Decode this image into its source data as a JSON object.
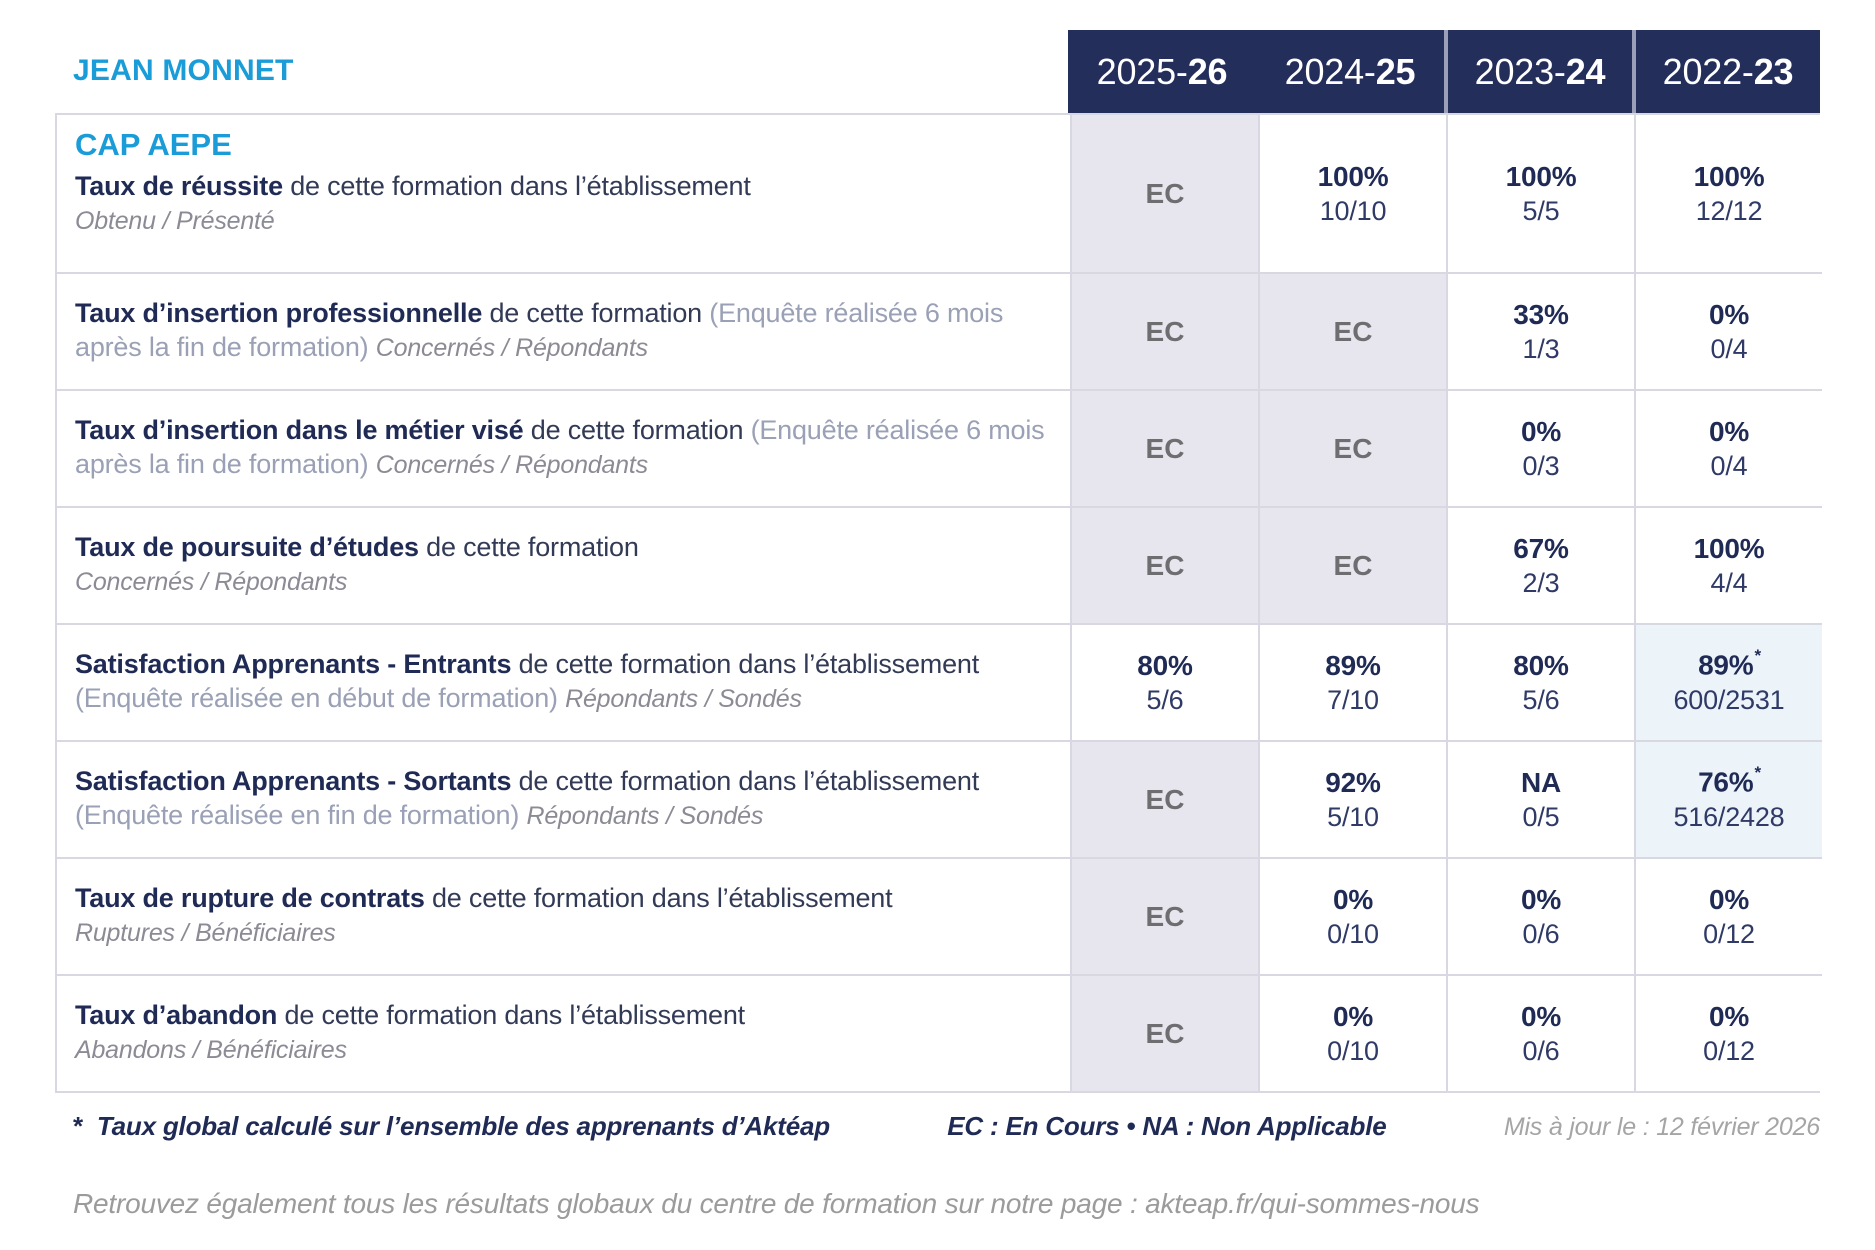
{
  "brand": "JEAN MONNET",
  "program": "CAP AEPE",
  "colors": {
    "brand_blue": "#1A9CD8",
    "header_navy": "#242E5B",
    "ec_cell_bg": "#E7E6EF",
    "star_cell_bg": "#ECF4FA"
  },
  "years": [
    {
      "prefix": "2025-",
      "bold": "26"
    },
    {
      "prefix": "2024-",
      "bold": "25"
    },
    {
      "prefix": "2023-",
      "bold": "24"
    },
    {
      "prefix": "2022-",
      "bold": "23"
    }
  ],
  "rows": [
    {
      "title": "Taux de réussite",
      "mid": "de cette formation dans l’établissement",
      "paren": "",
      "stats": "Obtenu / Présenté",
      "stats_newline": true,
      "cells": [
        {
          "type": "ec",
          "text": "EC"
        },
        {
          "type": "value",
          "pct": "100%",
          "frac": "10/10"
        },
        {
          "type": "value",
          "pct": "100%",
          "frac": "5/5"
        },
        {
          "type": "value",
          "pct": "100%",
          "frac": "12/12"
        }
      ]
    },
    {
      "title": "Taux d’insertion professionnelle",
      "mid": "de cette formation",
      "paren": "(Enquête réalisée 6 mois après la fin de formation)",
      "stats": "Concernés / Répondants",
      "stats_newline": false,
      "cells": [
        {
          "type": "ec",
          "text": "EC"
        },
        {
          "type": "ec",
          "text": "EC"
        },
        {
          "type": "value",
          "pct": "33%",
          "frac": "1/3"
        },
        {
          "type": "value",
          "pct": "0%",
          "frac": "0/4"
        }
      ]
    },
    {
      "title": "Taux d’insertion dans le métier visé",
      "mid": "de cette formation",
      "paren": "(Enquête réalisée 6 mois après la fin de formation)",
      "stats": "Concernés / Répondants",
      "stats_newline": false,
      "cells": [
        {
          "type": "ec",
          "text": "EC"
        },
        {
          "type": "ec",
          "text": "EC"
        },
        {
          "type": "value",
          "pct": "0%",
          "frac": "0/3"
        },
        {
          "type": "value",
          "pct": "0%",
          "frac": "0/4"
        }
      ]
    },
    {
      "title": "Taux de poursuite d’études",
      "mid": "de cette formation",
      "paren": "",
      "stats": "Concernés / Répondants",
      "stats_newline": true,
      "cells": [
        {
          "type": "ec",
          "text": "EC"
        },
        {
          "type": "ec",
          "text": "EC"
        },
        {
          "type": "value",
          "pct": "67%",
          "frac": "2/3"
        },
        {
          "type": "value",
          "pct": "100%",
          "frac": "4/4"
        }
      ]
    },
    {
      "title": "Satisfaction Apprenants - Entrants",
      "mid": "de cette formation dans l’établissement",
      "paren": "(Enquête réalisée en début de formation)",
      "stats": "Répondants / Sondés",
      "stats_newline": false,
      "cells": [
        {
          "type": "value",
          "pct": "80%",
          "frac": "5/6"
        },
        {
          "type": "value",
          "pct": "89%",
          "frac": "7/10"
        },
        {
          "type": "value",
          "pct": "80%",
          "frac": "5/6"
        },
        {
          "type": "value",
          "pct": "89%",
          "frac": "600/2531",
          "note": "*",
          "highlight": true
        }
      ]
    },
    {
      "title": "Satisfaction Apprenants - Sortants",
      "mid": "de cette formation dans l’établissement",
      "paren": "(Enquête réalisée en fin de formation)",
      "stats": "Répondants / Sondés",
      "stats_newline": false,
      "cells": [
        {
          "type": "ec",
          "text": "EC"
        },
        {
          "type": "value",
          "pct": "92%",
          "frac": "5/10"
        },
        {
          "type": "value",
          "pct": "NA",
          "frac": "0/5"
        },
        {
          "type": "value",
          "pct": "76%",
          "frac": "516/2428",
          "note": "*",
          "highlight": true
        }
      ]
    },
    {
      "title": "Taux de rupture de contrats",
      "mid": "de cette formation dans l’établissement",
      "paren": "",
      "stats": "Ruptures / Bénéficiaires",
      "stats_newline": true,
      "cells": [
        {
          "type": "ec",
          "text": "EC"
        },
        {
          "type": "value",
          "pct": "0%",
          "frac": "0/10"
        },
        {
          "type": "value",
          "pct": "0%",
          "frac": "0/6"
        },
        {
          "type": "value",
          "pct": "0%",
          "frac": "0/12"
        }
      ]
    },
    {
      "title": "Taux d’abandon",
      "mid": "de cette formation dans l’établissement",
      "paren": "",
      "stats": "Abandons / Bénéficiaires",
      "stats_newline": true,
      "cells": [
        {
          "type": "ec",
          "text": "EC"
        },
        {
          "type": "value",
          "pct": "0%",
          "frac": "0/10"
        },
        {
          "type": "value",
          "pct": "0%",
          "frac": "0/6"
        },
        {
          "type": "value",
          "pct": "0%",
          "frac": "0/12"
        }
      ]
    }
  ],
  "footer": {
    "star": "*",
    "footnote": "Taux global calculé sur l’ensemble des apprenants d’Aktéap",
    "legend": "EC : En Cours  •  NA : Non Applicable",
    "updated": "Mis à jour le : 12 février 2026",
    "bottom": "Retrouvez également tous les résultats globaux du centre de formation sur notre page : akteap.fr/qui-sommes-nous"
  }
}
